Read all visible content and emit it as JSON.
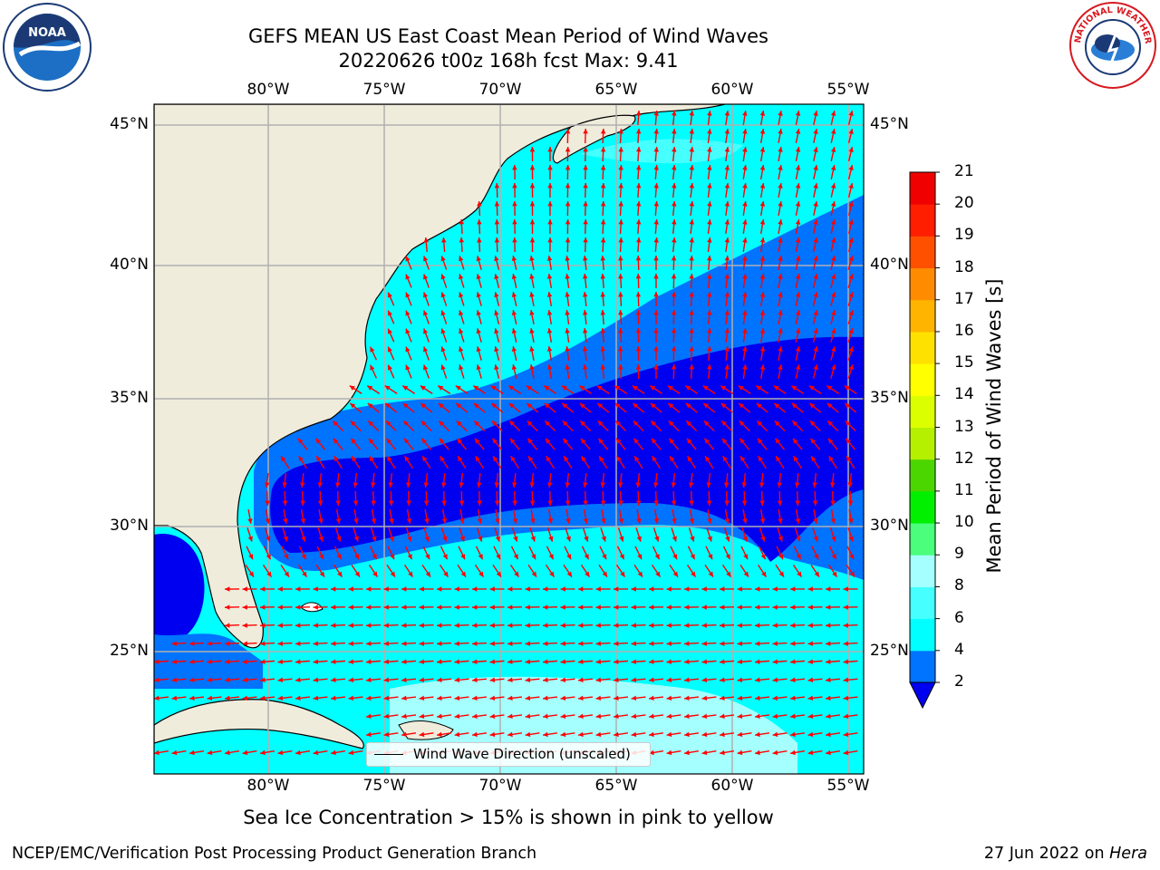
{
  "header": {
    "title_line1": "GEFS MEAN US East Coast Mean Period of Wind Waves",
    "title_line2": "20220626 t00z 168h fcst   Max: 9.41"
  },
  "logos": {
    "left": {
      "icon": "noaa-logo",
      "text": "NOAA"
    },
    "right": {
      "icon": "nws-logo",
      "text": "NATIONAL WEATHER SERVICE"
    }
  },
  "map": {
    "longitude_labels": [
      "80°W",
      "75°W",
      "70°W",
      "65°W",
      "60°W",
      "55°W"
    ],
    "latitude_labels": [
      "45°N",
      "40°N",
      "35°N",
      "30°N",
      "25°N"
    ],
    "colors": {
      "land": "#efecdc",
      "coast": "#000000",
      "grid": "#b0b0b0",
      "arrow": "#ff0000"
    }
  },
  "legend": {
    "label": "Wind Wave Direction (unscaled)"
  },
  "colorbar": {
    "title": "Mean Period of Wind Waves [s]",
    "ticks": [
      "2",
      "4",
      "6",
      "8",
      "9",
      "10",
      "11",
      "12",
      "13",
      "14",
      "15",
      "16",
      "17",
      "18",
      "19",
      "20",
      "21"
    ],
    "colors": [
      "#0000f0",
      "#0073ff",
      "#00ffff",
      "#46ffff",
      "#a5ffff",
      "#4bff7d",
      "#00f000",
      "#4cd600",
      "#b4f000",
      "#dcff00",
      "#ffff00",
      "#ffe100",
      "#ffb400",
      "#ff8c00",
      "#ff5000",
      "#ff1e00",
      "#f00000"
    ],
    "under_color": "#0000f0"
  },
  "subtitle": "Sea Ice Concentration > 15% is shown in pink to yellow",
  "footer": {
    "left": "NCEP/EMC/Verification Post Processing Product Generation Branch",
    "date": "27 Jun 2022 on",
    "machine": "Hera"
  }
}
